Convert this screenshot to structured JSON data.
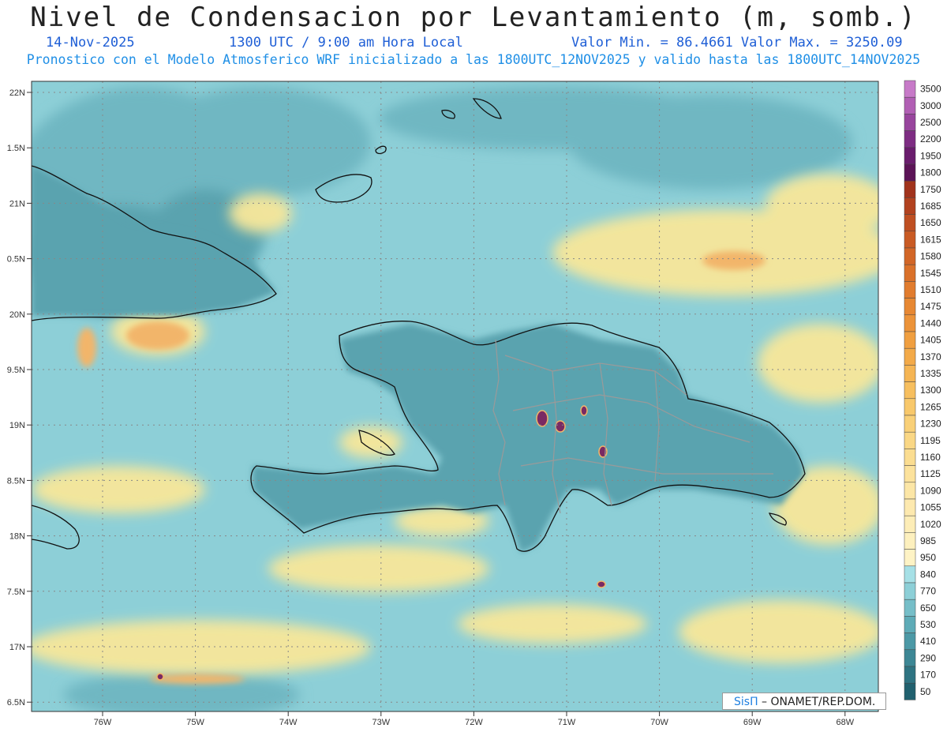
{
  "header": {
    "title": "Nivel de Condensacion por Levantamiento (m, somb.)",
    "date": "14-Nov-2025",
    "time": "1300 UTC / 9:00 am Hora Local",
    "min_max": "Valor Min. = 86.4661  Valor Max. = 3250.09",
    "subtitle": "Pronostico con el Modelo Atmosferico WRF inicializado a las 1800UTC_12NOV2025 y valido hasta las  1800UTC_14NOV2025"
  },
  "map": {
    "lat_ticks": [
      "22N",
      "1.5N",
      "21N",
      "0.5N",
      "20N",
      "9.5N",
      "19N",
      "8.5N",
      "18N",
      "7.5N",
      "17N",
      "6.5N"
    ],
    "lon_ticks": [
      "76W",
      "75W",
      "74W",
      "73W",
      "72W",
      "71W",
      "70W",
      "69W",
      "68W"
    ],
    "colors": {
      "ocean_low": "#8fd0d8",
      "land_mid": "#5aa3af",
      "yellow": "#f8e79a",
      "orange": "#f2b56a",
      "purple": "#7a2a63"
    }
  },
  "colorbar": {
    "labels": [
      "3500",
      "3000",
      "2500",
      "2200",
      "1950",
      "1800",
      "1750",
      "1685",
      "1650",
      "1615",
      "1580",
      "1545",
      "1510",
      "1475",
      "1440",
      "1405",
      "1370",
      "1335",
      "1300",
      "1265",
      "1230",
      "1195",
      "1160",
      "1125",
      "1090",
      "1055",
      "1020",
      "985",
      "950",
      "840",
      "770",
      "650",
      "530",
      "410",
      "290",
      "170",
      "50"
    ],
    "colors": [
      "#c77ac8",
      "#b15fb4",
      "#98459d",
      "#7e2d83",
      "#6a1d6d",
      "#5c1457",
      "#a1331c",
      "#b2421f",
      "#bf4f22",
      "#c95b24",
      "#d26627",
      "#da712a",
      "#e17c2e",
      "#e78833",
      "#ec9339",
      "#f09f40",
      "#f3aa49",
      "#f5b554",
      "#f7bf5f",
      "#f8c86b",
      "#f9d078",
      "#fad785",
      "#fbdd91",
      "#fce29c",
      "#fce6a6",
      "#fde9af",
      "#fdedb7",
      "#fdf0be",
      "#fef3c5",
      "#a6e0e6",
      "#8dcfd7",
      "#76bec8",
      "#5eabb7",
      "#4c99a6",
      "#3d8795",
      "#2f7482",
      "#21616f"
    ]
  },
  "credit": {
    "brand": "SisΠ",
    "text": " – ONAMET/REP.DOM."
  }
}
